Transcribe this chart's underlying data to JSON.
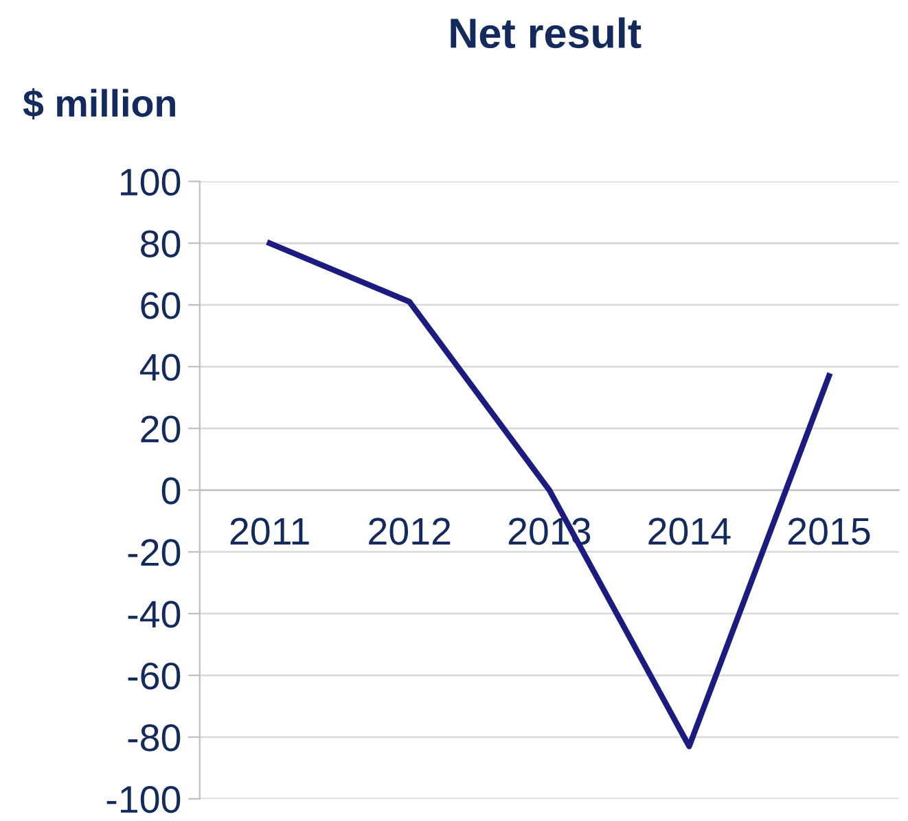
{
  "chart_data": {
    "type": "line",
    "title": "Net result",
    "ylabel": "$ million",
    "categories": [
      "2011",
      "2012",
      "2013",
      "2014",
      "2015"
    ],
    "series": [
      {
        "color": "#1c1c80",
        "values": [
          80,
          61,
          0,
          -83,
          37
        ]
      }
    ],
    "ylim": [
      -100,
      100
    ],
    "yticks": [
      -100,
      -80,
      -60,
      -40,
      -20,
      0,
      20,
      40,
      60,
      80,
      100
    ],
    "grid": "y",
    "marker": "none",
    "line_style": "solid"
  }
}
